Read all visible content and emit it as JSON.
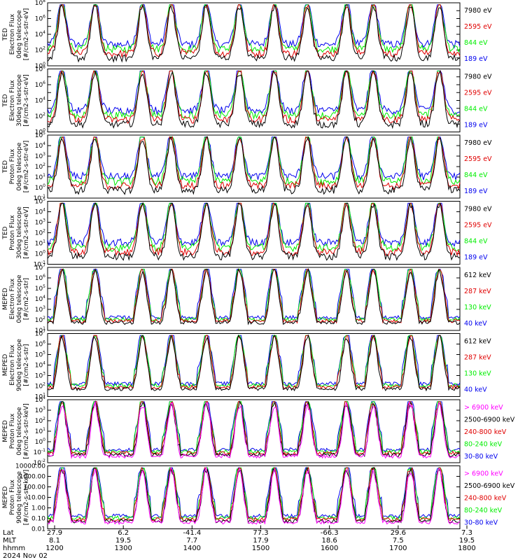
{
  "colors": {
    "red": "#e00000",
    "blue": "#0000ee",
    "green": "#00ee00",
    "black": "#000000",
    "magenta": "#ff00ff"
  },
  "chart_data": [
    {
      "type": "line",
      "ylabel": [
        "TED",
        "Electron Flux",
        "0deg telescope",
        "[#/cm2-s-str-eV]"
      ],
      "yscale": "log",
      "ylim_exp": [
        0,
        8
      ],
      "ytick_exps": [
        0,
        2,
        4,
        6,
        8
      ],
      "series": [
        {
          "name": "7980 eV",
          "color": "black"
        },
        {
          "name": "2595 eV",
          "color": "red"
        },
        {
          "name": "844 eV",
          "color": "green"
        },
        {
          "name": "189 eV",
          "color": "blue"
        }
      ]
    },
    {
      "type": "line",
      "ylabel": [
        "TED",
        "Electron Flux",
        "30deg telescope",
        "[#/cm2-s-str-eV]"
      ],
      "yscale": "log",
      "ylim_exp": [
        0,
        8
      ],
      "ytick_exps": [
        0,
        2,
        4,
        6,
        8
      ],
      "series": [
        {
          "name": "7980 eV",
          "color": "black"
        },
        {
          "name": "2595 eV",
          "color": "red"
        },
        {
          "name": "844 eV",
          "color": "green"
        },
        {
          "name": "189 eV",
          "color": "blue"
        }
      ]
    },
    {
      "type": "line",
      "ylabel": [
        "TED",
        "Proton Flux",
        "0deg telescope",
        "[#/cm2-s-str-eV]"
      ],
      "yscale": "log",
      "ylim_exp": [
        -1,
        5
      ],
      "ytick_exps": [
        -1,
        0,
        1,
        2,
        3,
        4,
        5
      ],
      "series": [
        {
          "name": "7980 eV",
          "color": "black"
        },
        {
          "name": "2595 eV",
          "color": "red"
        },
        {
          "name": "844 eV",
          "color": "green"
        },
        {
          "name": "189 eV",
          "color": "blue"
        }
      ]
    },
    {
      "type": "line",
      "ylabel": [
        "TED",
        "Proton Flux",
        "30deg telescope",
        "[#/cm2-s-str-eV]"
      ],
      "yscale": "log",
      "ylim_exp": [
        -1,
        5
      ],
      "ytick_exps": [
        -1,
        0,
        1,
        2,
        3,
        4,
        5
      ],
      "series": [
        {
          "name": "7980 eV",
          "color": "black"
        },
        {
          "name": "2595 eV",
          "color": "red"
        },
        {
          "name": "844 eV",
          "color": "green"
        },
        {
          "name": "189 eV",
          "color": "blue"
        }
      ]
    },
    {
      "type": "line",
      "ylabel": [
        "MEPED",
        "Electron Flux",
        "0deg telescope",
        "[#/cm2-s-str]"
      ],
      "yscale": "log",
      "ylim_exp": [
        1,
        7
      ],
      "ytick_exps": [
        1,
        2,
        3,
        4,
        5,
        6,
        7
      ],
      "series": [
        {
          "name": "612 keV",
          "color": "black"
        },
        {
          "name": "287 keV",
          "color": "red"
        },
        {
          "name": "130 keV",
          "color": "green"
        },
        {
          "name": "40 keV",
          "color": "blue"
        }
      ]
    },
    {
      "type": "line",
      "ylabel": [
        "MEPED",
        "Electron Flux",
        "90deg telescope",
        "[#/cm2-s-str]"
      ],
      "yscale": "log",
      "ylim_exp": [
        1,
        7
      ],
      "ytick_exps": [
        1,
        2,
        3,
        4,
        5,
        6,
        7
      ],
      "series": [
        {
          "name": "612 keV",
          "color": "black"
        },
        {
          "name": "287 keV",
          "color": "red"
        },
        {
          "name": "130 keV",
          "color": "green"
        },
        {
          "name": "40 keV",
          "color": "blue"
        }
      ]
    },
    {
      "type": "line",
      "ylabel": [
        "MEPED",
        "Proton Flux",
        "0deg telescope",
        "[#/cm2-s-str-keV]"
      ],
      "yscale": "log",
      "ylim_exp": [
        -2,
        4
      ],
      "ytick_exps": [
        -2,
        -1,
        0,
        1,
        2,
        3,
        4
      ],
      "series": [
        {
          "name": "> 6900 keV",
          "color": "magenta"
        },
        {
          "name": "2500-6900 keV",
          "color": "black"
        },
        {
          "name": "240-800 keV",
          "color": "red"
        },
        {
          "name": "80-240 keV",
          "color": "green"
        },
        {
          "name": "30-80 keV",
          "color": "blue"
        }
      ]
    },
    {
      "type": "line",
      "ylabel": [
        "MEPED",
        "Proton Flux",
        "90deg telescope",
        "[#/cm2-s-str-keV]"
      ],
      "yscale": "log",
      "ylim_exp": [
        -2,
        4
      ],
      "ytick_labels": [
        "0.01",
        "0.10",
        "1.00",
        "10.00",
        "100.00",
        "1000.00",
        "10000.00"
      ],
      "series": [
        {
          "name": "> 6900 keV",
          "color": "magenta"
        },
        {
          "name": "2500-6900 keV",
          "color": "black"
        },
        {
          "name": "240-800 keV",
          "color": "red"
        },
        {
          "name": "80-240 keV",
          "color": "green"
        },
        {
          "name": "30-80 keV",
          "color": "blue"
        }
      ]
    }
  ],
  "x_axis": {
    "row_labels": [
      "Lat",
      "MLT",
      "hhmm"
    ],
    "date": "2024 Nov 02",
    "ticks": [
      {
        "lat": "27.9",
        "mlt": "8.1",
        "hhmm": "1200"
      },
      {
        "lat": "6.2",
        "mlt": "19.5",
        "hhmm": "1300"
      },
      {
        "lat": "-41.4",
        "mlt": "7.7",
        "hhmm": "1400"
      },
      {
        "lat": "77.3",
        "mlt": "17.9",
        "hhmm": "1500"
      },
      {
        "lat": "-66.3",
        "mlt": "18.6",
        "hhmm": "1600"
      },
      {
        "lat": "29.6",
        "mlt": "7.5",
        "hhmm": "1700"
      },
      {
        "lat": "7.3",
        "mlt": "19.5",
        "hhmm": "1800"
      }
    ]
  }
}
